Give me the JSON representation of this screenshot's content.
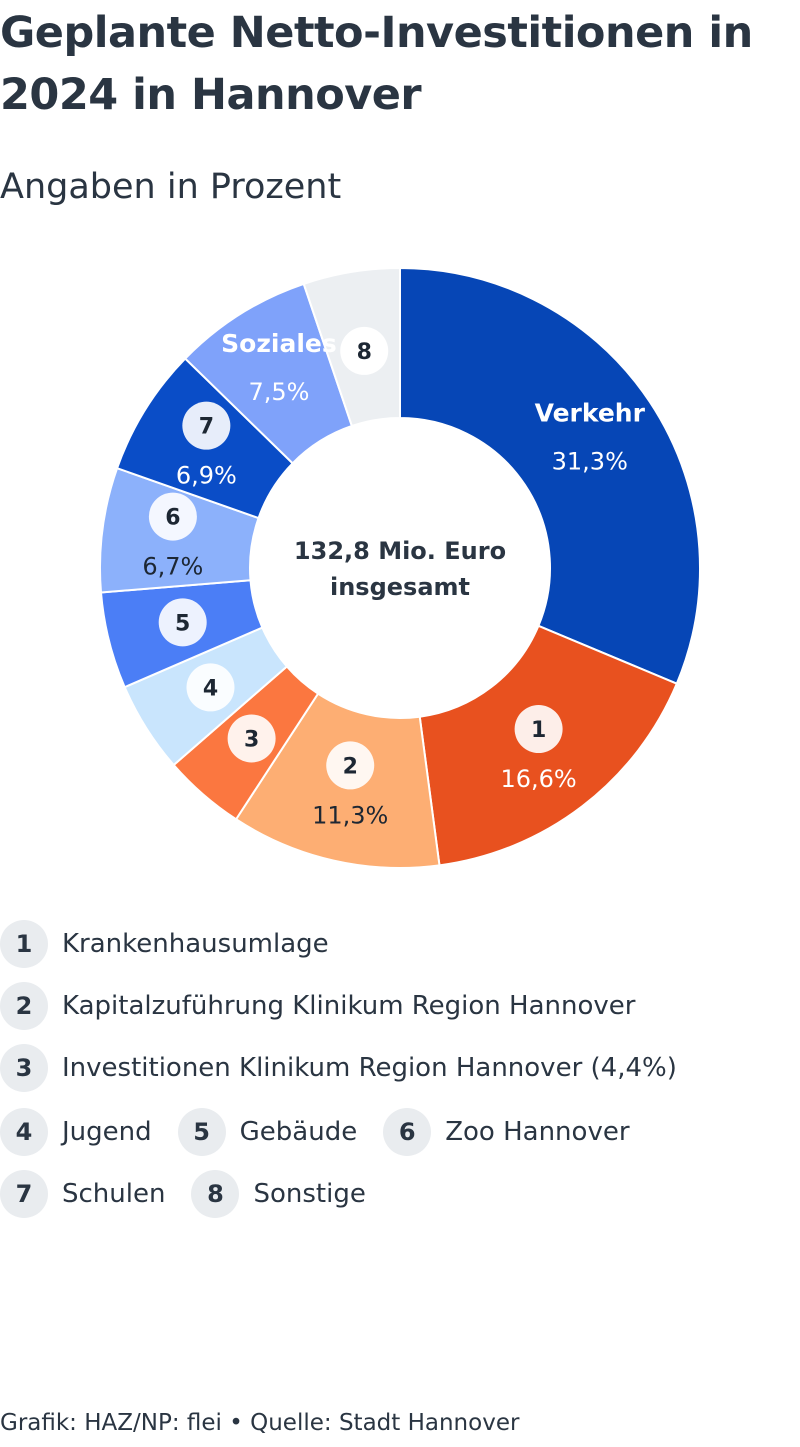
{
  "header": {
    "title": "Geplante Netto-Investitionen in 2024 in Hannover",
    "subtitle": "Angaben in Prozent"
  },
  "chart_data": {
    "type": "pie",
    "donut": true,
    "center_label": [
      "132,8 Mio. Euro",
      "insgesamt"
    ],
    "slices": [
      {
        "key": "verkehr",
        "name": "Verkehr",
        "value": 31.3,
        "value_label": "31,3%",
        "color": "#0646b6"
      },
      {
        "key": "1",
        "name": "Krankenhausumlage",
        "badge": "1",
        "value": 16.6,
        "value_label": "16,6%",
        "color": "#e8511f"
      },
      {
        "key": "2",
        "name": "Kapitalzuführung Klinikum Region Hannover",
        "badge": "2",
        "value": 11.3,
        "value_label": "11,3%",
        "color": "#fdae73"
      },
      {
        "key": "3",
        "name": "Investitionen Klinikum Region Hannover",
        "badge": "3",
        "value": 4.4,
        "value_label": "",
        "color": "#fb7740"
      },
      {
        "key": "4",
        "name": "Jugend",
        "badge": "4",
        "value": 4.9,
        "value_label": "",
        "color": "#c9e5fd"
      },
      {
        "key": "5",
        "name": "Gebäude",
        "badge": "5",
        "value": 5.2,
        "value_label": "",
        "color": "#4b7ef6"
      },
      {
        "key": "6",
        "name": "Zoo Hannover",
        "badge": "6",
        "value": 6.7,
        "value_label": "6,7%",
        "color": "#8cb1fb"
      },
      {
        "key": "7",
        "name": "Schulen",
        "badge": "7",
        "value": 6.9,
        "value_label": "6,9%",
        "color": "#0a4dc7"
      },
      {
        "key": "soziales",
        "name": "Soziales",
        "value": 7.5,
        "value_label": "7,5%",
        "color": "#7fa2fa"
      },
      {
        "key": "8",
        "name": "Sonstige",
        "badge": "8",
        "value": 5.2,
        "value_label": "",
        "color": "#eceff2"
      }
    ]
  },
  "legend": {
    "rows": [
      [
        {
          "badge": "1",
          "label": "Krankenhausumlage"
        }
      ],
      [
        {
          "badge": "2",
          "label": "Kapitalzuführung Klinikum Region Hannover"
        }
      ],
      [
        {
          "badge": "3",
          "label": "Investitionen Klinikum Region Hannover (4,4%)"
        }
      ],
      [
        {
          "badge": "4",
          "label": "Jugend"
        },
        {
          "badge": "5",
          "label": "Gebäude"
        },
        {
          "badge": "6",
          "label": "Zoo Hannover"
        }
      ],
      [
        {
          "badge": "7",
          "label": "Schulen"
        },
        {
          "badge": "8",
          "label": "Sonstige"
        }
      ]
    ]
  },
  "footer": "Grafik: HAZ/NP: flei • Quelle: Stadt Hannover"
}
